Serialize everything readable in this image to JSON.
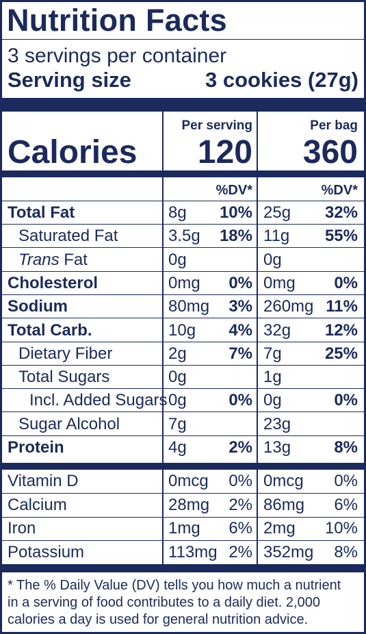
{
  "title": "Nutrition Facts",
  "servings_per_container": "3 servings per container",
  "serving_size_label": "Serving size",
  "serving_size_value": "3 cookies (27g)",
  "col_per_serving": "Per serving",
  "col_per_bag": "Per bag",
  "calories_label": "Calories",
  "calories_per_serving": "120",
  "calories_per_bag": "360",
  "dv_header": "%DV*",
  "rows": [
    {
      "name": "Total Fat",
      "bold": true,
      "indent": 0,
      "italic_prefix": "",
      "s_amt": "8g",
      "s_dv": "10%",
      "b_amt": "25g",
      "b_dv": "32%"
    },
    {
      "name": "Saturated Fat",
      "bold": false,
      "indent": 1,
      "italic_prefix": "",
      "s_amt": "3.5g",
      "s_dv": "18%",
      "b_amt": "11g",
      "b_dv": "55%"
    },
    {
      "name": " Fat",
      "bold": false,
      "indent": 1,
      "italic_prefix": "Trans",
      "s_amt": "0g",
      "s_dv": "",
      "b_amt": "0g",
      "b_dv": ""
    },
    {
      "name": "Cholesterol",
      "bold": true,
      "indent": 0,
      "italic_prefix": "",
      "s_amt": "0mg",
      "s_dv": "0%",
      "b_amt": "0mg",
      "b_dv": "0%"
    },
    {
      "name": "Sodium",
      "bold": true,
      "indent": 0,
      "italic_prefix": "",
      "s_amt": "80mg",
      "s_dv": "3%",
      "b_amt": "260mg",
      "b_dv": "11%"
    },
    {
      "name": "Total Carb.",
      "bold": true,
      "indent": 0,
      "italic_prefix": "",
      "s_amt": "10g",
      "s_dv": "4%",
      "b_amt": "32g",
      "b_dv": "12%"
    },
    {
      "name": "Dietary Fiber",
      "bold": false,
      "indent": 1,
      "italic_prefix": "",
      "s_amt": "2g",
      "s_dv": "7%",
      "b_amt": "7g",
      "b_dv": "25%"
    },
    {
      "name": "Total Sugars",
      "bold": false,
      "indent": 1,
      "italic_prefix": "",
      "s_amt": "0g",
      "s_dv": "",
      "b_amt": "1g",
      "b_dv": ""
    },
    {
      "name": "Incl. Added Sugars",
      "bold": false,
      "indent": 2,
      "italic_prefix": "",
      "s_amt": "0g",
      "s_dv": "0%",
      "b_amt": "0g",
      "b_dv": "0%"
    },
    {
      "name": "Sugar Alcohol",
      "bold": false,
      "indent": 1,
      "italic_prefix": "",
      "s_amt": "7g",
      "s_dv": "",
      "b_amt": "23g",
      "b_dv": ""
    },
    {
      "name": "Protein",
      "bold": true,
      "indent": 0,
      "italic_prefix": "",
      "s_amt": "4g",
      "s_dv": "2%",
      "b_amt": "13g",
      "b_dv": "8%"
    }
  ],
  "vitamins": [
    {
      "name": "Vitamin D",
      "s_amt": "0mcg",
      "s_dv": "0%",
      "b_amt": "0mcg",
      "b_dv": "0%"
    },
    {
      "name": "Calcium",
      "s_amt": "28mg",
      "s_dv": "2%",
      "b_amt": "86mg",
      "b_dv": "6%"
    },
    {
      "name": "Iron",
      "s_amt": "1mg",
      "s_dv": "6%",
      "b_amt": "2mg",
      "b_dv": "10%"
    },
    {
      "name": "Potassium",
      "s_amt": "113mg",
      "s_dv": "2%",
      "b_amt": "352mg",
      "b_dv": "8%"
    }
  ],
  "footnote_lines": [
    "* The % Daily Value (DV) tells you how much a nutrient",
    "in a serving of food contributes to a daily diet. 2,000",
    "calories a day is used for general nutrition advice."
  ],
  "colors": {
    "ink": "#1b2a5c",
    "background": "#ffffff"
  }
}
